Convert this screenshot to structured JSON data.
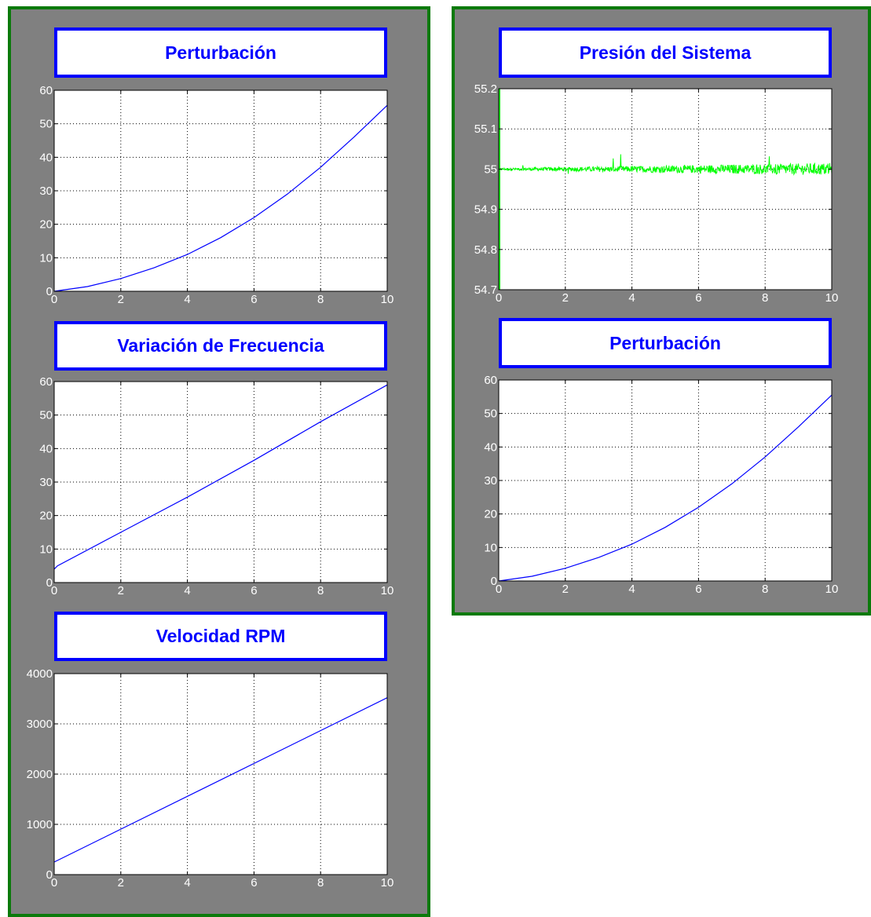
{
  "colors": {
    "panel_bg": "#808080",
    "panel_border": "#0b7a0b",
    "title_color": "#0000ff",
    "grid": "#000000",
    "tick_label": "#ffffff"
  },
  "chart_data": [
    {
      "id": "perturbacion-left",
      "type": "line",
      "title": "Perturbación",
      "x_range": [
        0,
        10
      ],
      "y_range": [
        0,
        60
      ],
      "x_ticks": [
        0,
        2,
        4,
        6,
        8,
        10
      ],
      "y_ticks": [
        0,
        10,
        20,
        30,
        40,
        50,
        60
      ],
      "grid": true,
      "series": [
        {
          "color": "#0000ff",
          "x": [
            0,
            1,
            2,
            3,
            4,
            5,
            6,
            7,
            8,
            9,
            10
          ],
          "y": [
            0,
            1.4,
            3.8,
            7,
            11,
            16,
            22,
            29,
            37,
            46,
            55.5
          ]
        }
      ]
    },
    {
      "id": "variacion-frecuencia",
      "type": "line",
      "title": "Variación de Frecuencia",
      "x_range": [
        0,
        10
      ],
      "y_range": [
        0,
        60
      ],
      "x_ticks": [
        0,
        2,
        4,
        6,
        8,
        10
      ],
      "y_ticks": [
        0,
        10,
        20,
        30,
        40,
        50,
        60
      ],
      "grid": true,
      "series": [
        {
          "color": "#0000ff",
          "x": [
            0,
            0.1,
            2,
            4,
            6,
            8,
            10
          ],
          "y": [
            4,
            5,
            15,
            25.5,
            36.5,
            48,
            59
          ]
        }
      ]
    },
    {
      "id": "velocidad-rpm",
      "type": "line",
      "title": "Velocidad RPM",
      "x_range": [
        0,
        10
      ],
      "y_range": [
        0,
        4000
      ],
      "x_ticks": [
        0,
        2,
        4,
        6,
        8,
        10
      ],
      "y_ticks": [
        0,
        1000,
        2000,
        3000,
        4000
      ],
      "grid": true,
      "series": [
        {
          "color": "#0000ff",
          "x": [
            0,
            10
          ],
          "y": [
            250,
            3520
          ]
        }
      ]
    },
    {
      "id": "presion-sistema",
      "type": "line",
      "title": "Presión del Sistema",
      "x_range": [
        0,
        10
      ],
      "y_range": [
        54.7,
        55.2
      ],
      "x_ticks": [
        0,
        2,
        4,
        6,
        8,
        10
      ],
      "y_ticks": [
        54.7,
        54.8,
        54.9,
        55,
        55.1,
        55.2
      ],
      "y_tick_labels": [
        "54.7",
        "54.8",
        "54.9",
        "55",
        "55.1",
        "55.2"
      ],
      "grid": true,
      "series": [
        {
          "color": "#00ff00",
          "baseline": 55,
          "noise": "approx. ±0.04 around 55, growing with time; initial transient spans full range at x=0"
        }
      ]
    },
    {
      "id": "perturbacion-right",
      "type": "line",
      "title": "Perturbación",
      "x_range": [
        0,
        10
      ],
      "y_range": [
        0,
        60
      ],
      "x_ticks": [
        0,
        2,
        4,
        6,
        8,
        10
      ],
      "y_ticks": [
        0,
        10,
        20,
        30,
        40,
        50,
        60
      ],
      "grid": true,
      "series": [
        {
          "color": "#0000ff",
          "x": [
            0,
            1,
            2,
            3,
            4,
            5,
            6,
            7,
            8,
            9,
            10
          ],
          "y": [
            0,
            1.4,
            3.8,
            7,
            11,
            16,
            22,
            29,
            37,
            46,
            55.5
          ]
        }
      ]
    }
  ]
}
